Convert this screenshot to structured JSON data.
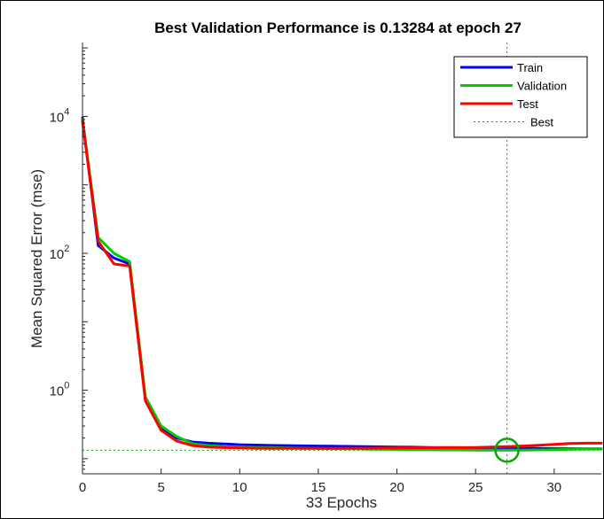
{
  "chart_data": {
    "type": "line",
    "title": "Best Validation Performance is 0.13284 at epoch 27",
    "xlabel": "33 Epochs",
    "ylabel": "Mean Squared Error  (mse)",
    "yscale": "log",
    "xlim": [
      0,
      33
    ],
    "ylim": [
      0.06,
      120000
    ],
    "x_ticks": [
      0,
      5,
      10,
      15,
      20,
      25,
      30
    ],
    "y_ticks": [
      {
        "value": 1,
        "base": "10",
        "exp": "0"
      },
      {
        "value": 100,
        "base": "10",
        "exp": "2"
      },
      {
        "value": 10000,
        "base": "10",
        "exp": "4"
      }
    ],
    "grid": false,
    "legend_position": "top-right",
    "series": [
      {
        "name": "Train",
        "color": "#0000ff",
        "x": [
          0,
          1,
          2,
          3,
          4,
          5,
          6,
          7,
          8,
          9,
          10,
          11,
          12,
          13,
          14,
          15,
          16,
          17,
          18,
          19,
          20,
          21,
          22,
          23,
          24,
          25,
          26,
          27,
          28,
          29,
          30,
          31,
          32,
          33
        ],
        "y": [
          9500,
          130,
          85,
          70,
          0.75,
          0.28,
          0.2,
          0.175,
          0.168,
          0.164,
          0.16,
          0.158,
          0.156,
          0.155,
          0.154,
          0.153,
          0.152,
          0.151,
          0.15,
          0.149,
          0.148,
          0.147,
          0.146,
          0.145,
          0.145,
          0.144,
          0.143,
          0.142,
          0.142,
          0.141,
          0.14,
          0.14,
          0.139,
          0.139
        ]
      },
      {
        "name": "Validation",
        "color": "#00cc00",
        "x": [
          0,
          1,
          2,
          3,
          4,
          5,
          6,
          7,
          8,
          9,
          10,
          11,
          12,
          13,
          14,
          15,
          16,
          17,
          18,
          19,
          20,
          21,
          22,
          23,
          24,
          25,
          26,
          27,
          28,
          29,
          30,
          31,
          32,
          33
        ],
        "y": [
          9000,
          170,
          100,
          75,
          0.8,
          0.3,
          0.21,
          0.165,
          0.155,
          0.15,
          0.148,
          0.146,
          0.145,
          0.143,
          0.142,
          0.141,
          0.14,
          0.139,
          0.138,
          0.137,
          0.136,
          0.135,
          0.135,
          0.134,
          0.134,
          0.133,
          0.133,
          0.13284,
          0.133,
          0.134,
          0.135,
          0.137,
          0.138,
          0.138
        ]
      },
      {
        "name": "Test",
        "color": "#ff0000",
        "x": [
          0,
          1,
          2,
          3,
          4,
          5,
          6,
          7,
          8,
          9,
          10,
          11,
          12,
          13,
          14,
          15,
          16,
          17,
          18,
          19,
          20,
          21,
          22,
          23,
          24,
          25,
          26,
          27,
          28,
          29,
          30,
          31,
          32,
          33
        ],
        "y": [
          8500,
          150,
          70,
          65,
          0.7,
          0.26,
          0.18,
          0.155,
          0.148,
          0.145,
          0.143,
          0.142,
          0.141,
          0.141,
          0.141,
          0.141,
          0.141,
          0.142,
          0.142,
          0.143,
          0.143,
          0.144,
          0.144,
          0.145,
          0.145,
          0.146,
          0.148,
          0.15,
          0.153,
          0.157,
          0.162,
          0.166,
          0.168,
          0.168
        ]
      }
    ],
    "best": {
      "name": "Best",
      "color": "#00aa00",
      "epoch": 27,
      "value": 0.13284
    }
  }
}
